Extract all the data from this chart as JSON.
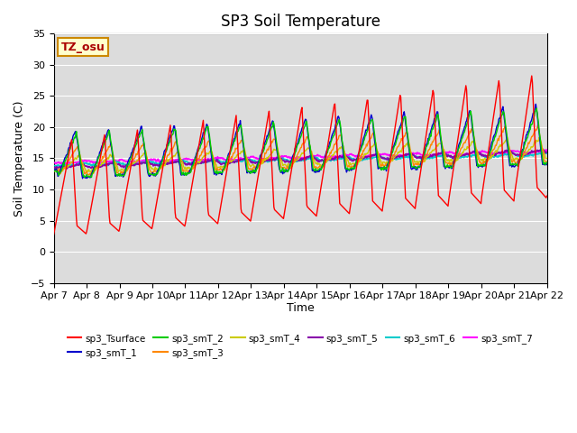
{
  "title": "SP3 Soil Temperature",
  "ylabel": "Soil Temperature (C)",
  "xlabel": "Time",
  "annotation": "TZ_osu",
  "ylim": [
    -5,
    35
  ],
  "x_tick_labels": [
    "Apr 7",
    "Apr 8",
    "Apr 9",
    "Apr 10",
    "Apr 11",
    "Apr 12",
    "Apr 13",
    "Apr 14",
    "Apr 15",
    "Apr 16",
    "Apr 17",
    "Apr 18",
    "Apr 19",
    "Apr 20",
    "Apr 21",
    "Apr 22"
  ],
  "series_colors": {
    "sp3_Tsurface": "#ff0000",
    "sp3_smT_1": "#0000cc",
    "sp3_smT_2": "#00cc00",
    "sp3_smT_3": "#ff8800",
    "sp3_smT_4": "#cccc00",
    "sp3_smT_5": "#8800aa",
    "sp3_smT_6": "#00cccc",
    "sp3_smT_7": "#ff00ff"
  },
  "background_color": "#e8e8e8",
  "plot_bg": "#dcdcdc",
  "title_fontsize": 12,
  "axis_label_fontsize": 9,
  "tick_fontsize": 8
}
